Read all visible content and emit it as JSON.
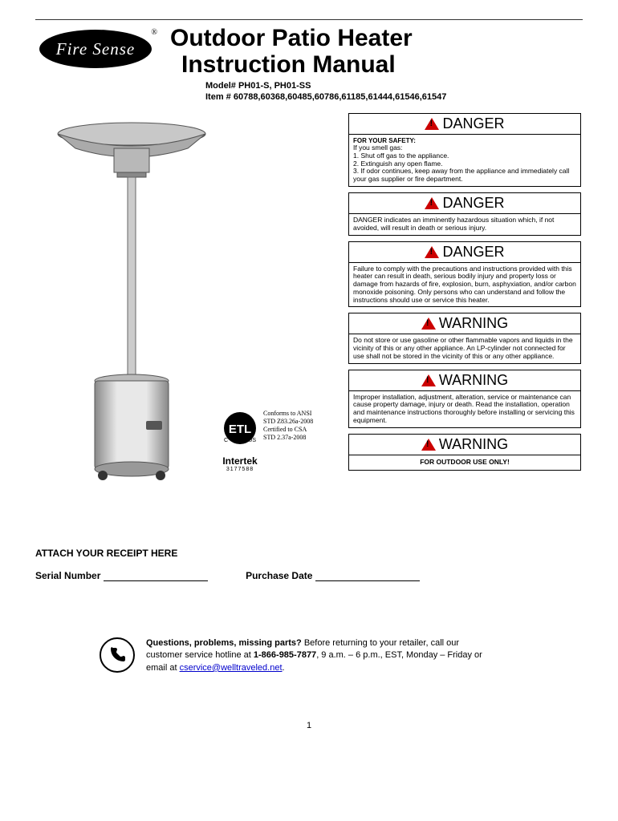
{
  "logo_text": "Fire Sense",
  "title_line1": "Outdoor Patio Heater",
  "title_line2": "Instruction Manual",
  "model_line": "Model# PH01-S, PH01-SS",
  "item_line": "Item # 60788,60368,60485,60786,61185,61444,61546,61547",
  "cert": {
    "l1": "Conforms to ANSI",
    "l2": "STD Z83.26a-2008",
    "l3": "Certified to CSA",
    "l4": "STD 2.37a-2008",
    "brand": "Intertek",
    "num": "3177588"
  },
  "warnings": [
    {
      "label": "DANGER",
      "sub": "FOR YOUR SAFETY:",
      "body": "If you smell gas:\n1. Shut off gas to the appliance.\n2. Extinguish any open flame.\n3. If odor continues, keep away from the appliance and immediately call your gas supplier or fire department."
    },
    {
      "label": "DANGER",
      "body": "DANGER indicates an imminently hazardous situation which, if not avoided, will result in death or serious injury."
    },
    {
      "label": "DANGER",
      "body": "Failure to comply with the precautions and instructions provided with this heater can result in death, serious bodily injury and property loss or damage from hazards of fire, explosion, burn, asphyxiation, and/or carbon monoxide poisoning. Only persons who can understand and follow the instructions should use or service this heater."
    },
    {
      "label": "WARNING",
      "body": "Do not store or use gasoline or other flammable vapors and liquids in the vicinity of this or any other appliance. An LP-cylinder not connected for use shall not be stored in the vicinity of this or any other appliance."
    },
    {
      "label": "WARNING",
      "body": "Improper installation, adjustment, alteration, service or maintenance can cause property damage, injury or death. Read the installation, operation and maintenance instructions thoroughly before installing or servicing this equipment."
    },
    {
      "label": "WARNING",
      "body": "FOR OUTDOOR USE ONLY!",
      "bold": true
    }
  ],
  "receipt_label": "ATTACH YOUR RECEIPT HERE",
  "serial_label": "Serial Number",
  "purchase_label": "Purchase Date",
  "contact": {
    "bold1": "Questions, problems, missing parts?",
    "t1": " Before returning to your retailer, call our customer service hotline at ",
    "phone": "1-866-985-7877",
    "t2": ", 9 a.m. – 6 p.m., EST, Monday – Friday or email at ",
    "email": "cservice@welltraveled.net",
    "t3": "."
  },
  "page_number": "1"
}
